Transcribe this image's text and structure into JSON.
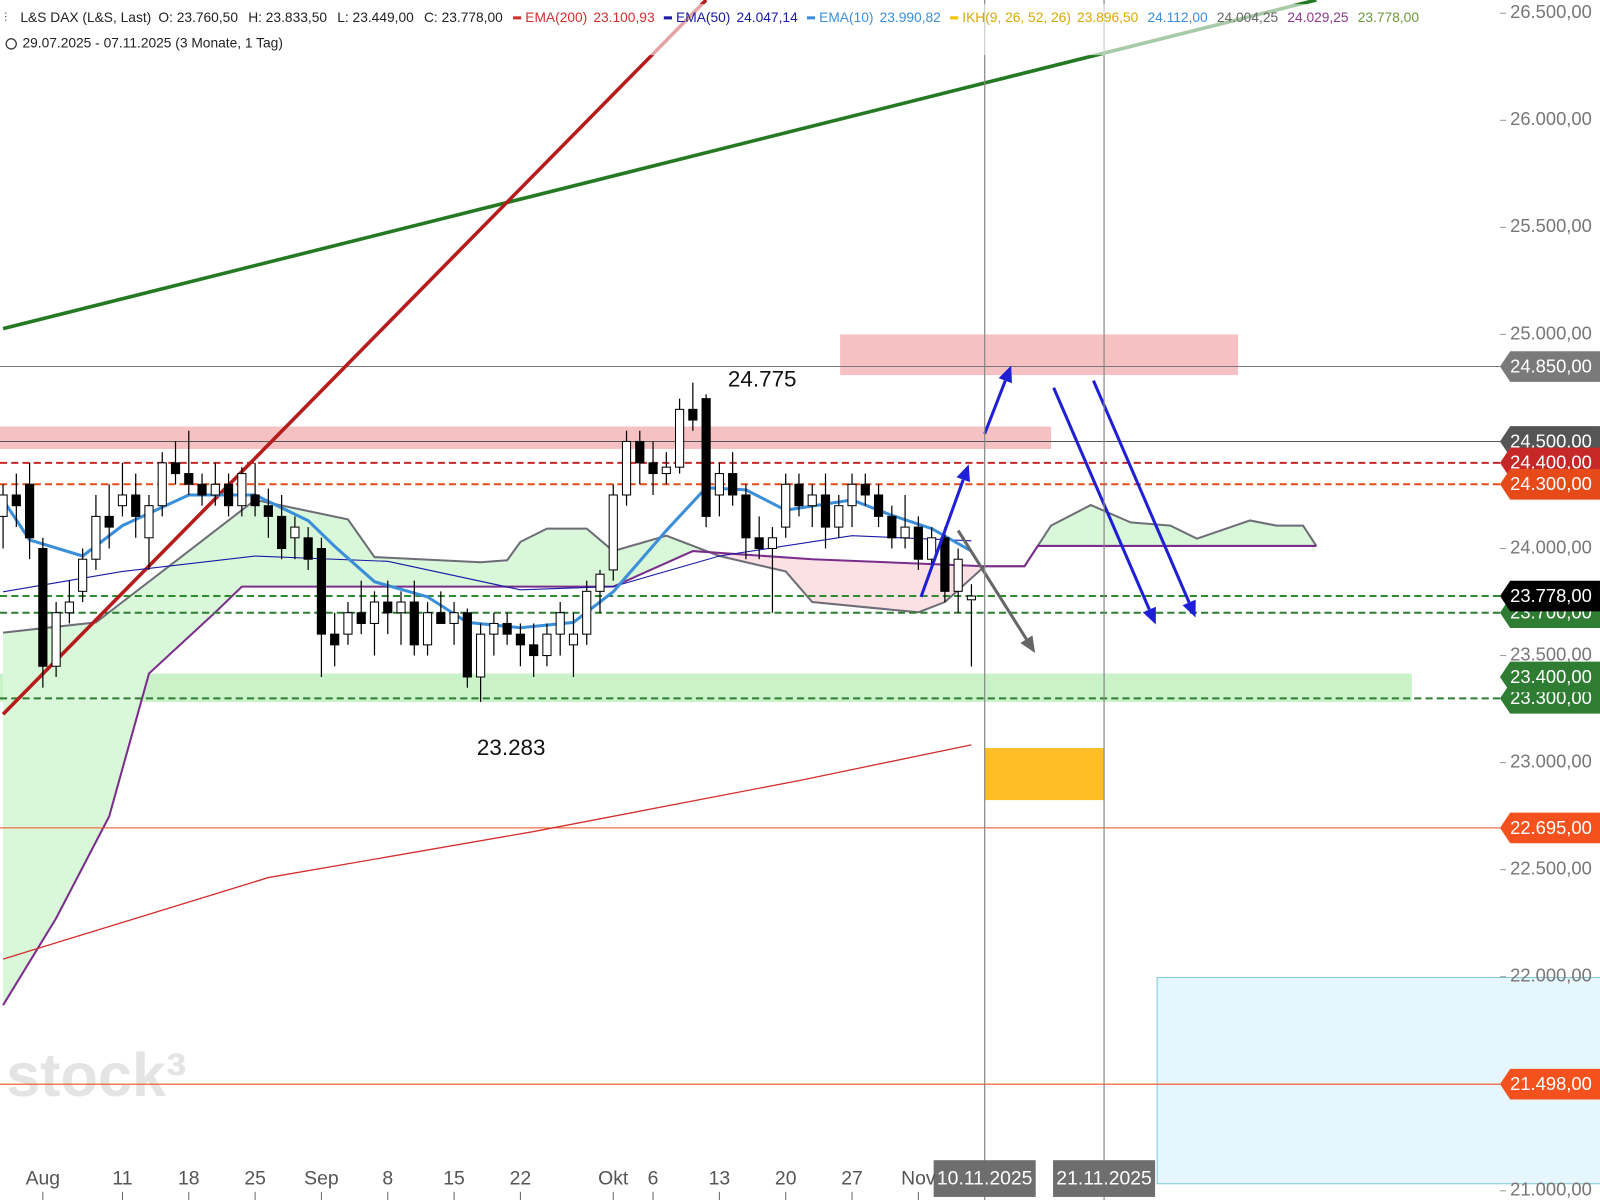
{
  "chart_data": {
    "type": "candlestick",
    "title": "L&S DAX (L&S, Last)",
    "ohlc_readout": [
      "O: 23.760,50",
      "H: 23.833,50",
      "L: 23.449,00",
      "C: 23.778,00"
    ],
    "subtitle": "29.07.2025 - 07.11.2025  (3 Monate, 1 Tag)",
    "watermark": "stock³",
    "xlim": [
      0,
      120
    ],
    "ylim": [
      21000,
      26500
    ],
    "yticks": [
      {
        "value": 21000,
        "label": "21.000,00"
      },
      {
        "value": 22000,
        "label": "22.000,00"
      },
      {
        "value": 22500,
        "label": "22.500,00"
      },
      {
        "value": 23000,
        "label": "23.000,00"
      },
      {
        "value": 23500,
        "label": "23.500,00"
      },
      {
        "value": 24000,
        "label": "24.000,00"
      },
      {
        "value": 24500,
        "label": "24.500,00"
      },
      {
        "value": 25000,
        "label": "25.000,00"
      },
      {
        "value": 25500,
        "label": "25.500,00"
      },
      {
        "value": 26000,
        "label": "26.000,00"
      },
      {
        "value": 26500,
        "label": "26.500,00"
      }
    ],
    "xticks": [
      {
        "value": 3,
        "label": "Aug"
      },
      {
        "value": 9,
        "label": "11"
      },
      {
        "value": 14,
        "label": "18"
      },
      {
        "value": 19,
        "label": "25"
      },
      {
        "value": 24,
        "label": "Sep"
      },
      {
        "value": 29,
        "label": "8"
      },
      {
        "value": 34,
        "label": "15"
      },
      {
        "value": 39,
        "label": "22"
      },
      {
        "value": 46,
        "label": "Okt"
      },
      {
        "value": 49,
        "label": "6"
      },
      {
        "value": 54,
        "label": "13"
      },
      {
        "value": 59,
        "label": "20"
      },
      {
        "value": 64,
        "label": "27"
      },
      {
        "value": 69,
        "label": "Nov"
      }
    ],
    "date_markers": [
      {
        "value": 74,
        "label": "10.11.2025"
      },
      {
        "value": 83,
        "label": "21.11.2025"
      }
    ],
    "up_color": "#ffffff",
    "down_color": "#000000",
    "ohlc": [
      [
        24150,
        24300,
        24000,
        24250
      ],
      [
        24250,
        24350,
        24100,
        24200
      ],
      [
        24300,
        24400,
        23950,
        24050
      ],
      [
        24000,
        24050,
        23350,
        23450
      ],
      [
        23450,
        23750,
        23400,
        23700
      ],
      [
        23700,
        23850,
        23650,
        23750
      ],
      [
        23800,
        24000,
        23750,
        23950
      ],
      [
        23950,
        24250,
        23900,
        24150
      ],
      [
        24150,
        24300,
        24000,
        24100
      ],
      [
        24200,
        24400,
        24150,
        24250
      ],
      [
        24250,
        24350,
        24050,
        24150
      ],
      [
        24050,
        24250,
        23900,
        24200
      ],
      [
        24200,
        24450,
        24150,
        24400
      ],
      [
        24400,
        24500,
        24300,
        24350
      ],
      [
        24350,
        24550,
        24250,
        24300
      ],
      [
        24300,
        24350,
        24200,
        24250
      ],
      [
        24250,
        24400,
        24200,
        24300
      ],
      [
        24300,
        24350,
        24150,
        24200
      ],
      [
        24200,
        24380,
        24150,
        24350
      ],
      [
        24250,
        24400,
        24150,
        24200
      ],
      [
        24200,
        24280,
        24050,
        24150
      ],
      [
        24150,
        24250,
        23950,
        24000
      ],
      [
        24050,
        24150,
        23950,
        24100
      ],
      [
        24050,
        24100,
        23900,
        23950
      ],
      [
        24000,
        24050,
        23400,
        23600
      ],
      [
        23600,
        23700,
        23450,
        23550
      ],
      [
        23600,
        23750,
        23550,
        23700
      ],
      [
        23700,
        23850,
        23600,
        23650
      ],
      [
        23650,
        23800,
        23500,
        23750
      ],
      [
        23750,
        23850,
        23600,
        23700
      ],
      [
        23700,
        23800,
        23550,
        23750
      ],
      [
        23750,
        23850,
        23500,
        23550
      ],
      [
        23550,
        23750,
        23500,
        23700
      ],
      [
        23700,
        23800,
        23650,
        23650
      ],
      [
        23650,
        23750,
        23550,
        23700
      ],
      [
        23700,
        23720,
        23350,
        23400
      ],
      [
        23400,
        23650,
        23283,
        23600
      ],
      [
        23600,
        23700,
        23500,
        23650
      ],
      [
        23650,
        23700,
        23550,
        23600
      ],
      [
        23600,
        23650,
        23450,
        23550
      ],
      [
        23550,
        23650,
        23400,
        23500
      ],
      [
        23500,
        23650,
        23450,
        23600
      ],
      [
        23600,
        23750,
        23500,
        23700
      ],
      [
        23550,
        23700,
        23400,
        23600
      ],
      [
        23600,
        23850,
        23550,
        23800
      ],
      [
        23800,
        23900,
        23700,
        23880
      ],
      [
        23900,
        24300,
        23850,
        24250
      ],
      [
        24250,
        24550,
        24200,
        24500
      ],
      [
        24500,
        24550,
        24300,
        24400
      ],
      [
        24400,
        24500,
        24250,
        24350
      ],
      [
        24350,
        24450,
        24300,
        24380
      ],
      [
        24380,
        24700,
        24350,
        24650
      ],
      [
        24650,
        24775,
        24550,
        24600
      ],
      [
        24700,
        24720,
        24100,
        24150
      ],
      [
        24250,
        24400,
        24150,
        24350
      ],
      [
        24350,
        24450,
        24200,
        24250
      ],
      [
        24250,
        24300,
        23950,
        24050
      ],
      [
        24050,
        24150,
        23950,
        24000
      ],
      [
        24000,
        24100,
        23700,
        24050
      ],
      [
        24100,
        24350,
        24050,
        24300
      ],
      [
        24300,
        24350,
        24150,
        24200
      ],
      [
        24200,
        24300,
        24100,
        24250
      ],
      [
        24250,
        24350,
        24000,
        24100
      ],
      [
        24100,
        24250,
        24050,
        24200
      ],
      [
        24200,
        24350,
        24100,
        24300
      ],
      [
        24300,
        24350,
        24200,
        24250
      ],
      [
        24250,
        24300,
        24100,
        24150
      ],
      [
        24150,
        24200,
        24000,
        24050
      ],
      [
        24050,
        24250,
        24000,
        24100
      ],
      [
        24100,
        24150,
        23900,
        23950
      ],
      [
        23950,
        24100,
        23900,
        24050
      ],
      [
        24050,
        24100,
        23750,
        23800
      ],
      [
        23800,
        24000,
        23700,
        23950
      ],
      [
        23760.5,
        23833.5,
        23449,
        23778
      ]
    ],
    "indicators": [
      {
        "name": "EMA(200)",
        "value_label": "23.100,93",
        "color": "#d32f2f",
        "width": 1.3,
        "x": [
          0,
          20,
          40,
          60,
          73
        ],
        "values": [
          22082,
          22463,
          22678,
          22916,
          23083
        ]
      },
      {
        "name": "EMA(50)",
        "value_label": "24.047,14",
        "color": "#1a1aa6",
        "width": 1.1,
        "x": [
          0,
          9,
          19,
          29,
          39,
          46,
          54,
          64,
          73
        ],
        "values": [
          23798,
          23893,
          23965,
          23940,
          23807,
          23822,
          23965,
          24060,
          24036
        ]
      },
      {
        "name": "EMA(10)",
        "value_label": "23.990,82",
        "color": "#3b8fd9",
        "width": 3,
        "x": [
          0,
          2,
          6,
          9,
          14,
          19,
          23,
          25,
          28,
          32,
          35,
          39,
          43,
          46,
          50,
          53,
          56,
          59,
          64,
          67,
          70,
          73
        ],
        "values": [
          24227,
          24040,
          23965,
          24107,
          24250,
          24250,
          24130,
          24010,
          23845,
          23774,
          23655,
          23630,
          23655,
          23798,
          24084,
          24284,
          24274,
          24179,
          24227,
          24155,
          24093,
          23988
        ]
      }
    ],
    "ichimoku": {
      "name": "IKH(9, 26, 52, 26)",
      "value_label": "23.896,50",
      "color": "#f5c400",
      "component_labels": [
        {
          "label": "24.112,00",
          "color": "#3b8fd9"
        },
        {
          "label": "24.004,25",
          "color": "#666666"
        },
        {
          "label": "24.029,25",
          "color": "#8e3a8e"
        },
        {
          "label": "23.778,00",
          "color": "#6a9a3a"
        }
      ],
      "span_a": {
        "color": "#6d6d78",
        "x": [
          0,
          7,
          14,
          19,
          26,
          28,
          36,
          38,
          39,
          41,
          44,
          46,
          50,
          54,
          59,
          61,
          65,
          69,
          71,
          74,
          77,
          79,
          82,
          85,
          88,
          90,
          94,
          96,
          98,
          99
        ],
        "values": [
          23607,
          23655,
          23988,
          24227,
          24136,
          23960,
          23936,
          23945,
          24031,
          24093,
          24093,
          23988,
          24060,
          23965,
          23893,
          23750,
          23726,
          23702,
          23750,
          23917,
          23917,
          24107,
          24203,
          24122,
          24107,
          24046,
          24131,
          24107,
          24107,
          24012
        ]
      },
      "span_b": {
        "color": "#7b2d8b",
        "x": [
          0,
          4,
          8,
          11,
          16,
          18,
          46,
          52,
          61,
          74,
          77,
          78,
          99
        ],
        "values": [
          21867,
          22273,
          22749,
          23416,
          23702,
          23822,
          23822,
          23988,
          23950,
          23917,
          23917,
          24012,
          24012
        ]
      },
      "bull_fill": "#d9f7d9",
      "bear_fill": "#fbe0e4"
    },
    "levels": [
      {
        "value": 24850,
        "label": "24.850,00",
        "color": "#7a7a7a",
        "line": "solid"
      },
      {
        "value": 24500,
        "label": "24.500,00",
        "color": "#555555",
        "line": "solid"
      },
      {
        "value": 24400,
        "label": "24.400,00",
        "color": "#c62828",
        "line": "dashed"
      },
      {
        "value": 24300,
        "label": "24.300,00",
        "color": "#e64a19",
        "line": "dashed"
      },
      {
        "value": 23700,
        "label": "23.700,00",
        "color": "#2e7d32",
        "line": "dashed"
      },
      {
        "value": 23778,
        "label": "23.778,00",
        "color": "#000000",
        "line": "dashed",
        "line_color": "#2e8b2e"
      },
      {
        "value": 23300,
        "label": "23.300,00",
        "color": "#2e7d32",
        "line": "dashed"
      },
      {
        "value": 23400,
        "label": "23.400,00",
        "color": "#2e7d32",
        "line": "none"
      },
      {
        "value": 22695,
        "label": "22.695,00",
        "color": "#f4511e",
        "line": "solid"
      },
      {
        "value": 21498,
        "label": "21.498,00",
        "color": "#f4511e",
        "line": "solid"
      }
    ],
    "zones": [
      {
        "x": [
          63.1,
          93.1
        ],
        "values": [
          24810,
          25000
        ],
        "color": "#f4b6b9"
      },
      {
        "x": [
          -0.3,
          79
        ],
        "values": [
          24465,
          24570
        ],
        "color": "#f4b6b9"
      },
      {
        "x": [
          -0.3,
          106.2
        ],
        "values": [
          23283,
          23416
        ],
        "color": "#bff0bf"
      },
      {
        "x": [
          74,
          83
        ],
        "values": [
          22825,
          23068
        ],
        "color": "#ffb300"
      },
      {
        "x": [
          87,
          121
        ],
        "values": [
          21033,
          21996
        ],
        "color": "#e0f6fd",
        "border": "#7fc6dc"
      }
    ],
    "trend_lines": [
      {
        "x": [
          0,
          99
        ],
        "values": [
          25027,
          26562
        ],
        "color": "#237a23"
      },
      {
        "x": [
          0,
          53
        ],
        "values": [
          23226,
          26562
        ],
        "color": "#b71c1c"
      }
    ],
    "arrows": [
      {
        "x": [
          74,
          76
        ],
        "values": [
          24536,
          24855
        ],
        "color": "#1f1fd6"
      },
      {
        "x": [
          69.2,
          72.8
        ],
        "values": [
          23774,
          24393
        ],
        "color": "#1f1fd6"
      },
      {
        "x": [
          79.2,
          86.9
        ],
        "values": [
          24751,
          23645
        ],
        "color": "#1f1fd6"
      },
      {
        "x": [
          82.2,
          89.9
        ],
        "values": [
          24784,
          23678
        ],
        "color": "#1f1fd6"
      },
      {
        "x": [
          72,
          77.8
        ],
        "values": [
          24084,
          23512
        ],
        "color": "#666666"
      }
    ],
    "annotations": [
      {
        "text": "24.775",
        "at": 52,
        "value": 24775,
        "side": "above"
      },
      {
        "text": "23.283",
        "at": 36,
        "value": 23283,
        "side": "below"
      }
    ]
  }
}
